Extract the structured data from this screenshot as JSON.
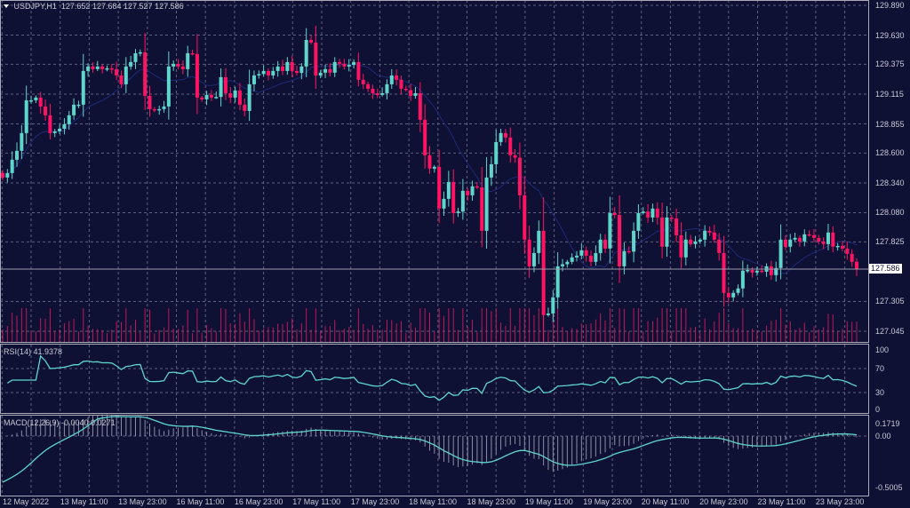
{
  "header": {
    "symbol": "USDJPY,H1",
    "open": "127.652",
    "high": "127.684",
    "low": "127.527",
    "close": "127.586"
  },
  "colors": {
    "background": "#0e1034",
    "bull": "#5fd6cb",
    "bear": "#ff1463",
    "grid": "#5d6180",
    "ma": "#1f2a78",
    "indicator": "#5fd6cb",
    "volume": "#c0185a"
  },
  "price_axis": [
    "129.890",
    "129.630",
    "129.375",
    "129.115",
    "128.855",
    "128.600",
    "128.340",
    "128.080",
    "127.825",
    "127.305",
    "127.045"
  ],
  "current_price": "127.586",
  "rsi": {
    "label": "RSI(14) 41.9378",
    "levels": [
      "100",
      "70",
      "30",
      "0"
    ]
  },
  "macd": {
    "label": "MACD(12,26,9) -0.0040 0.0271",
    "levels": [
      "0.1719",
      "0.00",
      "-0.5005"
    ]
  },
  "dates": [
    "12 May 2022",
    "13 May 11:00",
    "13 May 23:00",
    "16 May 11:00",
    "16 May 23:00",
    "17 May 11:00",
    "17 May 23:00",
    "18 May 11:00",
    "18 May 23:00",
    "19 May 11:00",
    "19 May 23:00",
    "20 May 11:00",
    "20 May 23:00",
    "23 May 11:00",
    "23 May 23:00"
  ],
  "chart_data": {
    "type": "candlestick",
    "timeframe": "H1",
    "ylim": [
      127.0,
      129.9
    ],
    "closes": [
      128.387,
      128.426,
      128.542,
      128.62,
      128.775,
      129.061,
      129.061,
      129.085,
      129.007,
      128.93,
      128.775,
      128.79,
      128.813,
      128.852,
      128.93,
      129.023,
      129.023,
      129.317,
      129.356,
      129.333,
      129.356,
      129.333,
      129.34,
      129.333,
      129.278,
      129.201,
      129.356,
      129.395,
      129.472,
      129.48,
      129.1,
      128.984,
      128.976,
      128.984,
      129.007,
      129.356,
      129.379,
      129.356,
      129.333,
      129.472,
      129.465,
      129.085,
      129.069,
      129.108,
      129.085,
      129.09,
      129.263,
      129.123,
      129.085,
      129.147,
      129.023,
      128.968,
      129.201,
      129.278,
      129.29,
      129.317,
      129.278,
      129.317,
      129.356,
      129.317,
      129.395,
      129.317,
      129.3,
      129.356,
      129.588,
      129.565,
      129.278,
      129.302,
      129.333,
      129.302,
      129.395,
      129.38,
      129.356,
      129.37,
      129.395,
      129.24,
      129.201,
      129.162,
      129.123,
      129.108,
      129.123,
      129.201,
      129.278,
      129.24,
      129.162,
      129.15,
      129.1,
      129.123,
      128.891,
      128.581,
      128.465,
      128.48,
      128.116,
      128.201,
      128.348,
      128.077,
      128.09,
      128.271,
      128.232,
      128.31,
      128.3,
      127.922,
      128.387,
      128.503,
      128.697,
      128.775,
      128.736,
      128.581,
      128.56,
      128.232,
      127.845,
      127.612,
      127.728,
      127.922,
      127.186,
      127.2,
      127.341,
      127.612,
      127.63,
      127.651,
      127.69,
      127.705,
      127.752,
      127.705,
      127.651,
      127.728,
      127.845,
      127.767,
      128.077,
      128.06,
      127.612,
      127.745,
      127.74,
      127.922,
      128.077,
      128.09,
      128.038,
      128.116,
      128.038,
      127.783,
      128.038,
      128.03,
      127.883,
      127.69,
      127.845,
      127.806,
      127.829,
      127.845,
      127.922,
      127.907,
      127.845,
      127.728,
      127.38,
      127.341,
      127.38,
      127.419,
      127.574,
      127.58,
      127.558,
      127.574,
      127.565,
      127.612,
      127.535,
      127.597,
      127.845,
      127.783,
      127.845,
      127.86,
      127.829,
      127.891,
      127.883,
      127.86,
      127.829,
      127.806,
      127.907,
      127.783,
      127.79,
      127.767,
      127.721,
      127.651,
      127.586
    ]
  }
}
